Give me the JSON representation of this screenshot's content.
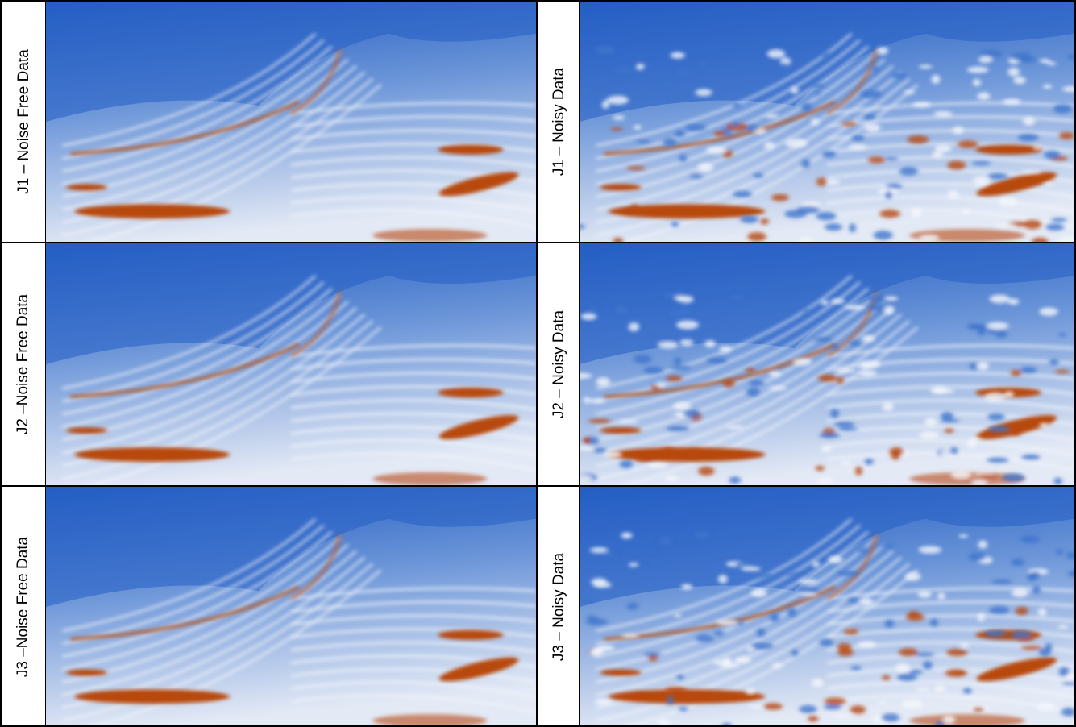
{
  "table": {
    "rows": [
      [
        {
          "label": "J1 – Noise Free Data"
        },
        {
          "label": "J1 – Noisy Data"
        }
      ],
      [
        {
          "label": "J2 –Noise Free Data"
        },
        {
          "label": "J2 – Noisy Data"
        }
      ],
      [
        {
          "label": "J3 –Noise Free Data"
        },
        {
          "label": "J3 – Noisy Data"
        }
      ]
    ]
  }
}
